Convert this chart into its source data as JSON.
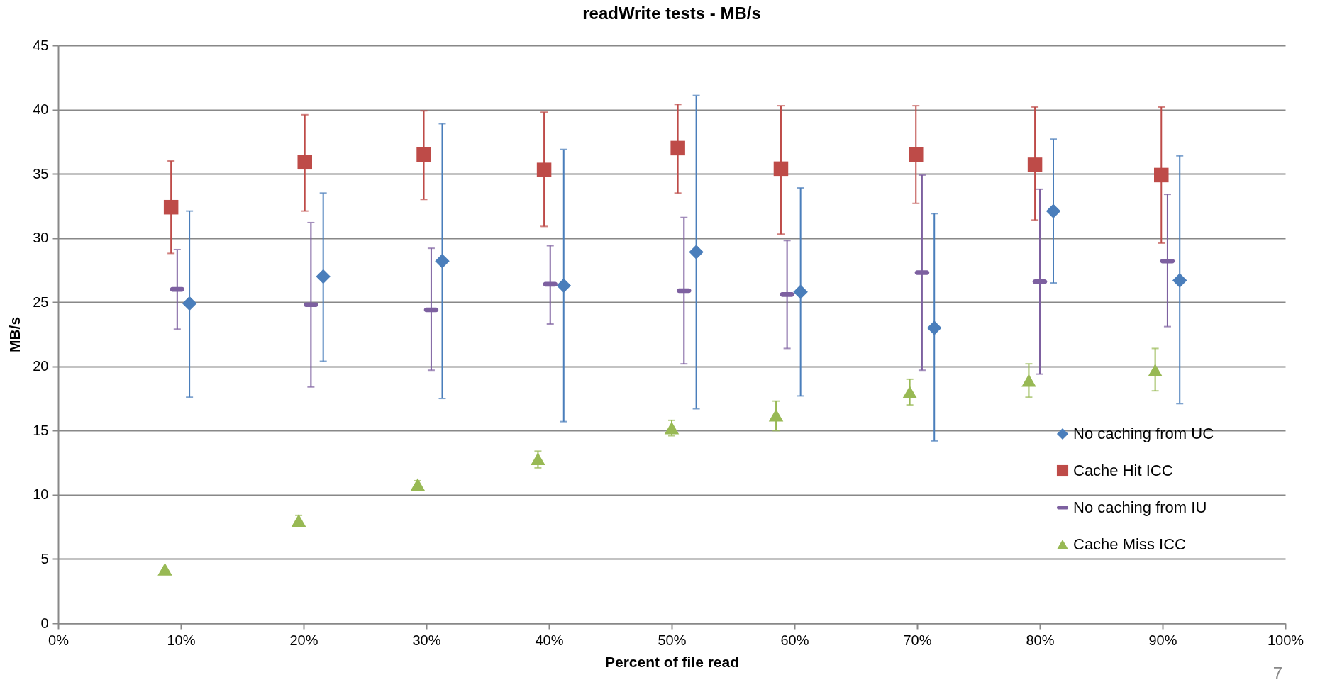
{
  "chart_data": {
    "type": "scatter",
    "title": "readWrite tests - MB/s",
    "xlabel": "Percent of file read",
    "ylabel": "MB/s",
    "xlim": [
      0,
      100
    ],
    "xticks": [
      {
        "value": 0,
        "label": "0%"
      },
      {
        "value": 10,
        "label": "10%"
      },
      {
        "value": 20,
        "label": "20%"
      },
      {
        "value": 30,
        "label": "30%"
      },
      {
        "value": 40,
        "label": "40%"
      },
      {
        "value": 50,
        "label": "50%"
      },
      {
        "value": 60,
        "label": "60%"
      },
      {
        "value": 70,
        "label": "70%"
      },
      {
        "value": 80,
        "label": "80%"
      },
      {
        "value": 90,
        "label": "90%"
      },
      {
        "value": 100,
        "label": "100%"
      }
    ],
    "ylim": [
      0,
      45
    ],
    "yticks": [
      0,
      5,
      10,
      15,
      20,
      25,
      30,
      35,
      40,
      45
    ],
    "grid": "y",
    "legend": "bottom right",
    "series": [
      {
        "name": "No caching from UC",
        "color": "#4a7ebb",
        "marker": "diamond",
        "x": [
          10.7,
          21.6,
          31.3,
          41.2,
          52.0,
          60.5,
          71.4,
          81.1,
          91.4
        ],
        "values": [
          24.9,
          27.0,
          28.2,
          26.3,
          28.9,
          25.8,
          23.0,
          32.1,
          26.7
        ],
        "errors": [
          [
            17.6,
            32.1
          ],
          [
            20.4,
            33.5
          ],
          [
            17.5,
            38.9
          ],
          [
            15.7,
            36.9
          ],
          [
            16.7,
            41.1
          ],
          [
            17.7,
            33.9
          ],
          [
            14.2,
            31.9
          ],
          [
            26.5,
            37.7
          ],
          [
            17.1,
            36.4
          ]
        ]
      },
      {
        "name": "Cache Hit ICC",
        "color": "#be4b48",
        "marker": "square",
        "x": [
          9.2,
          20.1,
          29.8,
          39.6,
          50.5,
          58.9,
          69.9,
          79.6,
          89.9
        ],
        "values": [
          32.4,
          35.9,
          36.5,
          35.3,
          37.0,
          35.4,
          36.5,
          35.7,
          34.9
        ],
        "errors": [
          [
            28.8,
            36.0
          ],
          [
            32.1,
            39.6
          ],
          [
            33.0,
            39.9
          ],
          [
            30.9,
            39.8
          ],
          [
            33.5,
            40.4
          ],
          [
            30.3,
            40.3
          ],
          [
            32.7,
            40.3
          ],
          [
            31.4,
            40.2
          ],
          [
            29.6,
            40.2
          ]
        ]
      },
      {
        "name": "No caching from IU",
        "color": "#7d60a0",
        "x": [
          9.7,
          20.6,
          30.4,
          40.1,
          51.0,
          59.4,
          70.4,
          80.0,
          90.4
        ],
        "values": [
          26.0,
          24.8,
          24.4,
          26.4,
          25.9,
          25.6,
          27.3,
          26.6,
          28.2
        ],
        "errors": [
          [
            22.9,
            29.1
          ],
          [
            18.4,
            31.2
          ],
          [
            19.7,
            29.2
          ],
          [
            23.3,
            29.4
          ],
          [
            20.2,
            31.6
          ],
          [
            21.4,
            29.8
          ],
          [
            19.7,
            34.9
          ],
          [
            19.4,
            33.8
          ],
          [
            23.1,
            33.4
          ]
        ]
      },
      {
        "name": "Cache Miss ICC",
        "color": "#98b954",
        "marker": "triangle",
        "x": [
          8.7,
          19.6,
          29.3,
          39.1,
          50.0,
          58.5,
          69.4,
          79.1,
          89.4
        ],
        "values": [
          4.2,
          8.0,
          10.8,
          12.8,
          15.2,
          16.2,
          18.0,
          18.9,
          19.7
        ],
        "errors": [
          null,
          [
            7.9,
            8.4
          ],
          [
            10.7,
            11.1
          ],
          [
            12.1,
            13.4
          ],
          [
            14.6,
            15.8
          ],
          [
            15.0,
            17.3
          ],
          [
            17.0,
            19.0
          ],
          [
            17.6,
            20.2
          ],
          [
            18.1,
            21.4
          ]
        ]
      }
    ],
    "annotations": [
      "7"
    ]
  }
}
